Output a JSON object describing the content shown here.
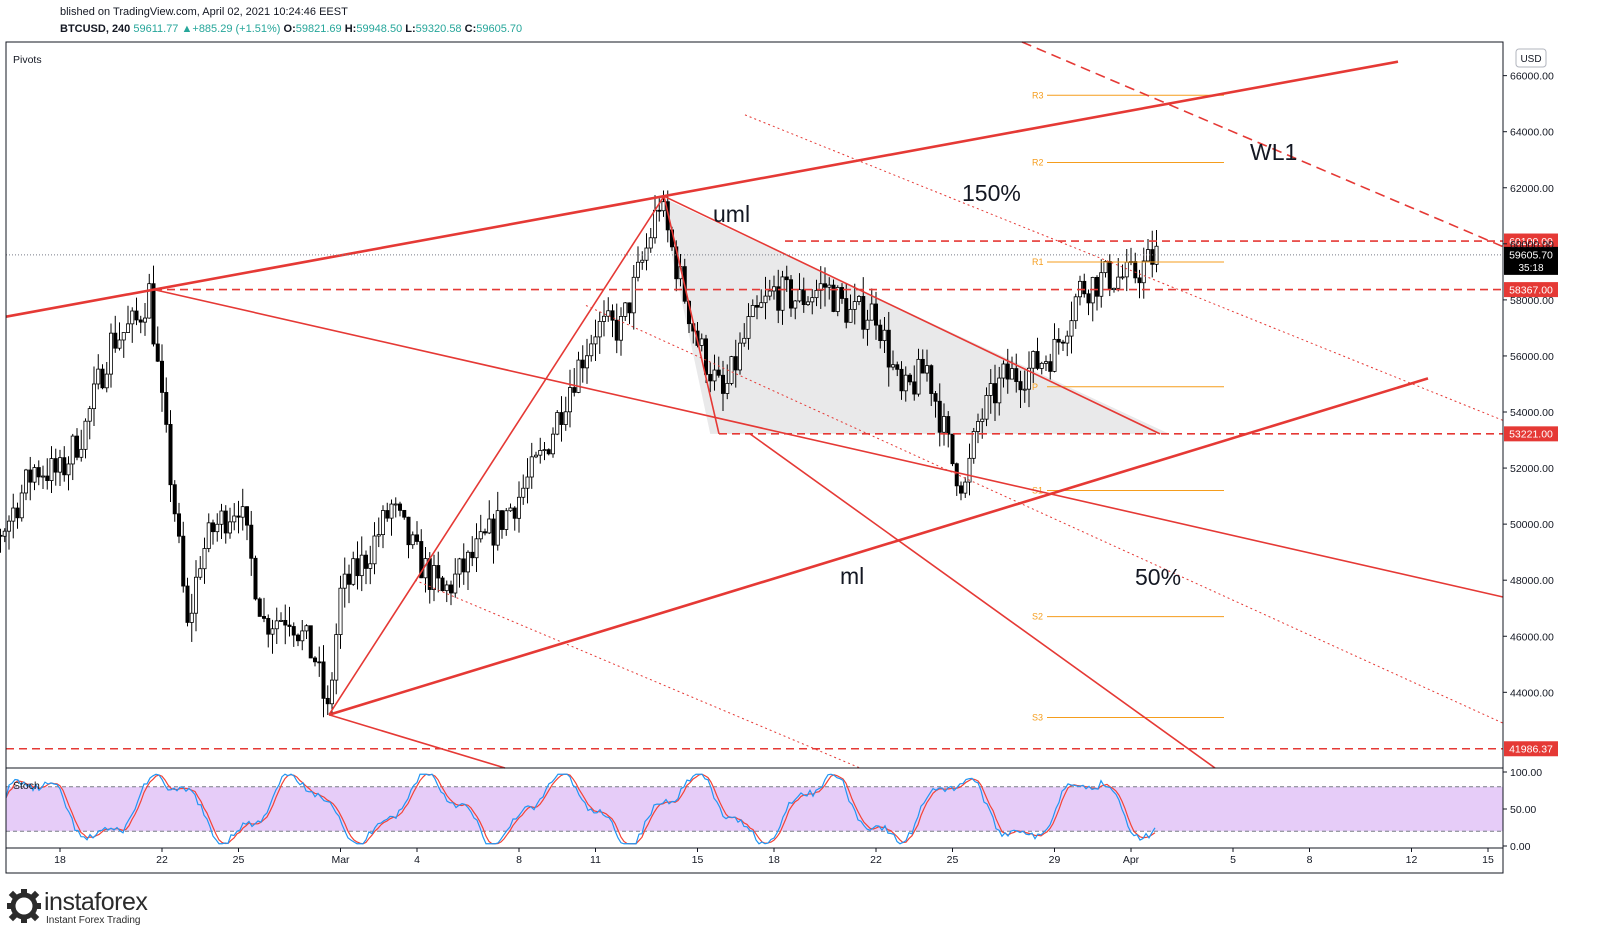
{
  "header": {
    "line1": "blished on TradingView.com, April 02, 2021 10:24:46 EEST",
    "symbol": "BTCUSD, 240",
    "last": "59611.77",
    "change": "+885.29 (+1.51%)",
    "o_label": "O:",
    "o": "59821.69",
    "h_label": "H:",
    "h": "59948.50",
    "l_label": "L:",
    "l": "59320.58",
    "c_label": "C:",
    "c": "59605.70"
  },
  "panes": {
    "price_label": "Pivots",
    "stoch_label": "Stoch",
    "currency_badge": "USD"
  },
  "logo": {
    "name": "instaforex",
    "tagline": "Instant Forex Trading"
  },
  "colors": {
    "red": "#e53935",
    "orange": "#f59d1d",
    "candle": "#000000",
    "triangle_fill": "#e9e9ea",
    "stoch_band": "#e6ccf8",
    "stoch_k": "#2196f3",
    "stoch_d": "#f44336"
  },
  "chart_data": {
    "type": "candlestick",
    "symbol": "BTCUSD",
    "timeframe": "240",
    "ylim": [
      41300,
      67200
    ],
    "y_ticks": [
      44000,
      46000,
      48000,
      50000,
      52000,
      54000,
      56000,
      58000,
      60000,
      62000,
      64000,
      66000
    ],
    "y_tick_labels": [
      "44000.00",
      "46000.00",
      "48000.00",
      "50000.00",
      "52000.00",
      "54000.00",
      "56000.00",
      "58000.00",
      "60000.00",
      "62000.00",
      "64000.00",
      "66000.00"
    ],
    "x_ticks": [
      {
        "label": "18",
        "date": "2021-02-18"
      },
      {
        "label": "22",
        "date": "2021-02-22"
      },
      {
        "label": "25",
        "date": "2021-02-25"
      },
      {
        "label": "Mar",
        "date": "2021-03-01"
      },
      {
        "label": "4",
        "date": "2021-03-04"
      },
      {
        "label": "8",
        "date": "2021-03-08"
      },
      {
        "label": "11",
        "date": "2021-03-11"
      },
      {
        "label": "15",
        "date": "2021-03-15"
      },
      {
        "label": "18",
        "date": "2021-03-18"
      },
      {
        "label": "22",
        "date": "2021-03-22"
      },
      {
        "label": "25",
        "date": "2021-03-25"
      },
      {
        "label": "29",
        "date": "2021-03-29"
      },
      {
        "label": "Apr",
        "date": "2021-04-01"
      },
      {
        "label": "5",
        "date": "2021-04-05"
      },
      {
        "label": "8",
        "date": "2021-04-08"
      },
      {
        "label": "12",
        "date": "2021-04-12"
      },
      {
        "label": "15",
        "date": "2021-04-15"
      }
    ],
    "price_path": [
      {
        "date": "2021-02-14",
        "close": 48000
      },
      {
        "date": "2021-02-15",
        "close": 48800
      },
      {
        "date": "2021-02-16",
        "close": 50200
      },
      {
        "date": "2021-02-17",
        "close": 52000
      },
      {
        "date": "2021-02-18",
        "close": 51800
      },
      {
        "date": "2021-02-19",
        "close": 53500
      },
      {
        "date": "2021-02-20",
        "close": 56500
      },
      {
        "date": "2021-02-21",
        "close": 57200
      },
      {
        "date": "2021-02-21T12:00",
        "close": 58300
      },
      {
        "date": "2021-02-22",
        "close": 54200
      },
      {
        "date": "2021-02-22T12:00",
        "close": 50500
      },
      {
        "date": "2021-02-23",
        "close": 46200
      },
      {
        "date": "2021-02-23T12:00",
        "close": 48800
      },
      {
        "date": "2021-02-24",
        "close": 49800
      },
      {
        "date": "2021-02-25",
        "close": 50800
      },
      {
        "date": "2021-02-26",
        "close": 46500
      },
      {
        "date": "2021-02-27",
        "close": 46800
      },
      {
        "date": "2021-02-28",
        "close": 45200
      },
      {
        "date": "2021-02-28T12:00",
        "close": 43200
      },
      {
        "date": "2021-03-01",
        "close": 47500
      },
      {
        "date": "2021-03-02",
        "close": 48800
      },
      {
        "date": "2021-03-03",
        "close": 50600
      },
      {
        "date": "2021-03-04",
        "close": 48800
      },
      {
        "date": "2021-03-05",
        "close": 47500
      },
      {
        "date": "2021-03-06",
        "close": 48600
      },
      {
        "date": "2021-03-07",
        "close": 49800
      },
      {
        "date": "2021-03-08",
        "close": 51000
      },
      {
        "date": "2021-03-09",
        "close": 52600
      },
      {
        "date": "2021-03-10",
        "close": 55000
      },
      {
        "date": "2021-03-11",
        "close": 57000
      },
      {
        "date": "2021-03-12",
        "close": 57000
      },
      {
        "date": "2021-03-13",
        "close": 59800
      },
      {
        "date": "2021-03-13T12:00",
        "close": 61500
      },
      {
        "date": "2021-03-14",
        "close": 59800
      },
      {
        "date": "2021-03-15",
        "close": 56500
      },
      {
        "date": "2021-03-16",
        "close": 54500
      },
      {
        "date": "2021-03-17",
        "close": 57000
      },
      {
        "date": "2021-03-18",
        "close": 58300
      },
      {
        "date": "2021-03-19",
        "close": 58000
      },
      {
        "date": "2021-03-20",
        "close": 58500
      },
      {
        "date": "2021-03-21",
        "close": 57500
      },
      {
        "date": "2021-03-22",
        "close": 57600
      },
      {
        "date": "2021-03-23",
        "close": 54500
      },
      {
        "date": "2021-03-24",
        "close": 55600
      },
      {
        "date": "2021-03-25",
        "close": 52200
      },
      {
        "date": "2021-03-25T12:00",
        "close": 51300
      },
      {
        "date": "2021-03-26",
        "close": 53600
      },
      {
        "date": "2021-03-27",
        "close": 55200
      },
      {
        "date": "2021-03-28",
        "close": 55500
      },
      {
        "date": "2021-03-29",
        "close": 56200
      },
      {
        "date": "2021-03-30",
        "close": 58400
      },
      {
        "date": "2021-03-31",
        "close": 58800
      },
      {
        "date": "2021-04-01",
        "close": 58800
      },
      {
        "date": "2021-04-02",
        "close": 59605.7
      }
    ],
    "horizontal_levels": [
      {
        "price": 60100,
        "label": "60100.00"
      },
      {
        "price": 58367,
        "label": "58367.00"
      },
      {
        "price": 53221,
        "label": "53221.00"
      },
      {
        "price": 41986.37,
        "label": "41986.37"
      }
    ],
    "last_price": {
      "price": 59605.7,
      "label": "59605.70",
      "countdown": "35:18"
    },
    "pivots": [
      {
        "name": "R3",
        "price": 65300
      },
      {
        "name": "R2",
        "price": 62900
      },
      {
        "name": "R1",
        "price": 59350
      },
      {
        "name": "P",
        "price": 54900
      },
      {
        "name": "S1",
        "price": 51200
      },
      {
        "name": "S2",
        "price": 46700
      },
      {
        "name": "S3",
        "price": 43100
      }
    ],
    "annotations": [
      "uml",
      "ml",
      "150%",
      "50%",
      "WL1"
    ],
    "stochastic": {
      "name": "Stoch",
      "upper_band": 80,
      "lower_band": 20,
      "ticks": [
        0,
        50,
        100
      ],
      "tick_labels": [
        "0.00",
        "50.00",
        "100.00"
      ]
    }
  }
}
